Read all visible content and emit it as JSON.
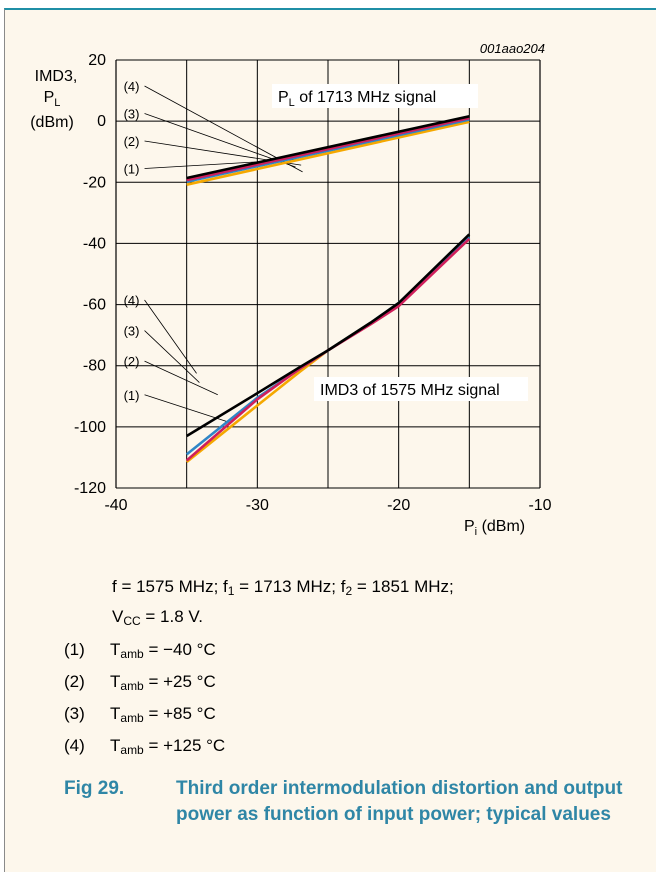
{
  "figure_id": "001aao204",
  "chart_data": {
    "type": "line",
    "ylabel_parts": [
      "IMD3,",
      "P",
      "L",
      "(dBm)"
    ],
    "xlabel_parts": [
      "P",
      "i",
      " (dBm)"
    ],
    "xlim": [
      -40,
      -10
    ],
    "ylim": [
      -120,
      20
    ],
    "xticks": [
      "-40",
      "-30",
      "-20",
      "-10"
    ],
    "yticks": [
      "20",
      "0",
      "-20",
      "-40",
      "-60",
      "-80",
      "-100",
      "-120"
    ],
    "grid": true,
    "upper_group_label_parts": [
      "P",
      "L",
      " of 1713 MHz signal"
    ],
    "lower_group_label": "IMD3 of 1575 MHz signal",
    "curve_labels": [
      "(1)",
      "(2)",
      "(3)",
      "(4)"
    ],
    "series": [
      {
        "name": "(1)",
        "group": "PL",
        "color": "#f5a800",
        "x": [
          -35,
          -15
        ],
        "y": [
          -20.8,
          -0.2
        ]
      },
      {
        "name": "(2)",
        "group": "PL",
        "color": "#2f86c6",
        "x": [
          -35,
          -15
        ],
        "y": [
          -19.8,
          0.5
        ]
      },
      {
        "name": "(3)",
        "group": "PL",
        "color": "#d01f5b",
        "x": [
          -35,
          -15
        ],
        "y": [
          -19.3,
          1.0
        ]
      },
      {
        "name": "(4)",
        "group": "PL",
        "color": "#000000",
        "x": [
          -35,
          -15
        ],
        "y": [
          -18.6,
          1.6
        ]
      },
      {
        "name": "(1)",
        "group": "IMD3",
        "color": "#f5a800",
        "x": [
          -35,
          -30,
          -27,
          -25,
          -22,
          -20,
          -15
        ],
        "y": [
          -111.5,
          -93,
          -82,
          -75,
          -66,
          -60,
          -38.5
        ]
      },
      {
        "name": "(2)",
        "group": "IMD3",
        "color": "#2f86c6",
        "x": [
          -35,
          -30,
          -27,
          -25,
          -22,
          -20,
          -15
        ],
        "y": [
          -109,
          -90.5,
          -81,
          -75,
          -66,
          -59.5,
          -38
        ]
      },
      {
        "name": "(3)",
        "group": "IMD3",
        "color": "#d01f5b",
        "x": [
          -35,
          -30,
          -27,
          -25,
          -22,
          -20,
          -15
        ],
        "y": [
          -111,
          -91,
          -81,
          -75,
          -66.5,
          -60.5,
          -38.5
        ]
      },
      {
        "name": "(4)",
        "group": "IMD3",
        "color": "#000000",
        "x": [
          -35,
          -30,
          -27,
          -25,
          -22,
          -20,
          -15
        ],
        "y": [
          -103,
          -89,
          -80.5,
          -75,
          -66,
          -59.5,
          -37
        ]
      }
    ]
  },
  "caption_line1": [
    {
      "t": "f = 1575 MHz; f"
    },
    {
      "sub": "1"
    },
    {
      "t": " = 1713 MHz; f"
    },
    {
      "sub": "2"
    },
    {
      "t": " = 1851 MHz;"
    }
  ],
  "caption_line2": [
    {
      "t": "V"
    },
    {
      "sub": "CC"
    },
    {
      "t": " = 1.8 V."
    }
  ],
  "notes": [
    {
      "num": "(1)",
      "sym": "T",
      "sub": "amb",
      "val": " = −40 °C"
    },
    {
      "num": "(2)",
      "sym": "T",
      "sub": "amb",
      "val": " = +25 °C"
    },
    {
      "num": "(3)",
      "sym": "T",
      "sub": "amb",
      "val": " = +85 °C"
    },
    {
      "num": "(4)",
      "sym": "T",
      "sub": "amb",
      "val": " = +125 °C"
    }
  ],
  "figure_label": "Fig 29.",
  "figure_title": "Third order intermodulation distortion and output power as function of input power; typical values"
}
